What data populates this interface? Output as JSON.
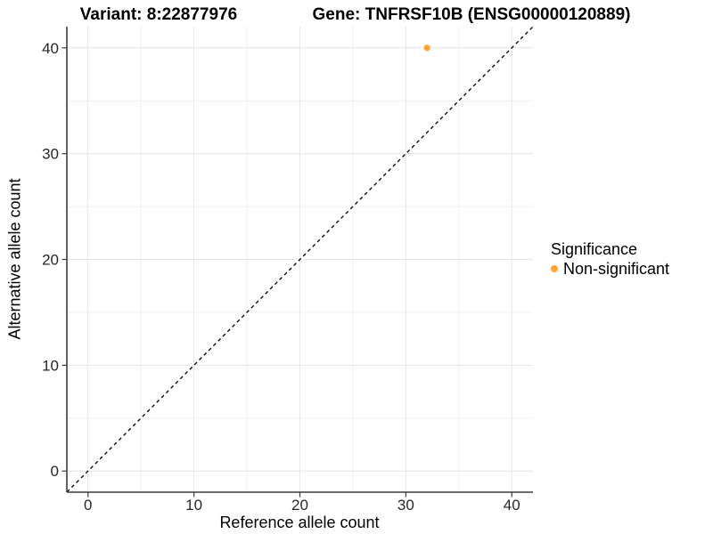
{
  "chart_data": {
    "type": "scatter",
    "titles": [
      "Variant: 8:22877976",
      "Gene: TNFRSF10B (ENSG00000120889)"
    ],
    "xlabel": "Reference allele count",
    "ylabel": "Alternative allele count",
    "xlim": [
      -2,
      42
    ],
    "ylim": [
      -2,
      42
    ],
    "x_ticks": [
      0,
      10,
      20,
      30,
      40
    ],
    "y_ticks": [
      0,
      10,
      20,
      30,
      40
    ],
    "x_minor_ticks": [
      5,
      15,
      25,
      35
    ],
    "y_minor_ticks": [
      5,
      15,
      25,
      35
    ],
    "grid": "major and minor gridlines, light gray, white background",
    "reference_line": {
      "type": "identity y=x",
      "style": "dashed",
      "color": "#000000"
    },
    "series": [
      {
        "name": "Non-significant",
        "color": "#FFA333",
        "points": [
          {
            "x": 32,
            "y": 40
          }
        ]
      }
    ],
    "legend": {
      "title": "Significance",
      "position": "right",
      "entries": [
        {
          "label": "Non-significant",
          "color": "#FFA333"
        }
      ]
    }
  },
  "colors": {
    "background": "#FFFFFF",
    "grid_major": "#E6E6E6",
    "grid_minor": "#F1F1F1",
    "axis_line": "#3C3C3C",
    "tick_text": "#262626",
    "title_text": "#000000",
    "point": "#FFA333"
  }
}
